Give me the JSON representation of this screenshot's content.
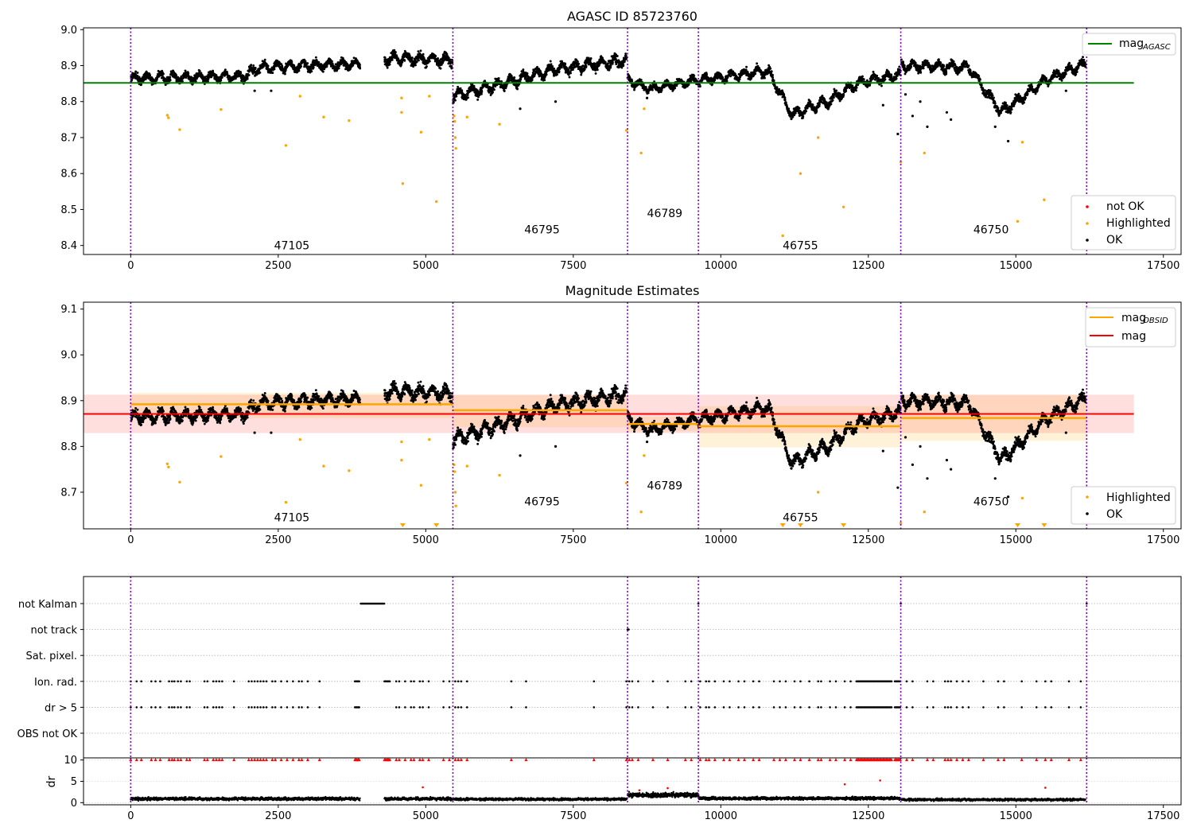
{
  "chart_data": [
    {
      "type": "scatter",
      "title": "AGASC ID 85723760",
      "xlim": [
        -800,
        17800
      ],
      "ylim": [
        8.375,
        9.005
      ],
      "xticks": [
        0,
        2500,
        5000,
        7500,
        10000,
        12500,
        15000,
        17500
      ],
      "yticks": [
        8.4,
        8.5,
        8.6,
        8.7,
        8.8,
        8.9,
        9.0
      ],
      "hlines": [
        {
          "name": "mag_AGASC",
          "y": 8.852,
          "x_range": [
            -800,
            17000
          ],
          "color": "#008000"
        }
      ],
      "vlines": [
        0,
        5460,
        8420,
        9620,
        13050,
        16200
      ],
      "obsid_labels": [
        {
          "text": "47105",
          "x": 2730,
          "y": 8.4
        },
        {
          "text": "46795",
          "x": 6970,
          "y": 8.445
        },
        {
          "text": "46789",
          "x": 9050,
          "y": 8.49
        },
        {
          "text": "46755",
          "x": 11350,
          "y": 8.4
        },
        {
          "text": "46750",
          "x": 14580,
          "y": 8.445
        }
      ],
      "legend_top": {
        "placement": "top-right",
        "entries": [
          {
            "label": "mag",
            "subscript": "AGASC",
            "color": "#008000"
          }
        ]
      },
      "legend_bottom": {
        "placement": "bottom-right",
        "entries": [
          {
            "label": "not OK",
            "color": "#ff0000"
          },
          {
            "label": "Highlighted",
            "color": "#ffa500"
          },
          {
            "label": "OK",
            "color": "#000000"
          }
        ]
      },
      "highlighted_points": [
        [
          620,
          8.762
        ],
        [
          640,
          8.755
        ],
        [
          830,
          8.722
        ],
        [
          1530,
          8.778
        ],
        [
          2630,
          8.678
        ],
        [
          2870,
          8.815
        ],
        [
          3270,
          8.757
        ],
        [
          3700,
          8.747
        ],
        [
          4590,
          8.81
        ],
        [
          4590,
          8.77
        ],
        [
          4610,
          8.572
        ],
        [
          4920,
          8.715
        ],
        [
          5060,
          8.815
        ],
        [
          5180,
          8.522
        ],
        [
          5480,
          8.76
        ],
        [
          5490,
          8.745
        ],
        [
          5500,
          8.7
        ],
        [
          5510,
          8.67
        ],
        [
          5700,
          8.757
        ],
        [
          6250,
          8.737
        ],
        [
          8400,
          8.72
        ],
        [
          8650,
          8.657
        ],
        [
          8700,
          8.78
        ],
        [
          11050,
          8.427
        ],
        [
          11350,
          8.6
        ],
        [
          11650,
          8.7
        ],
        [
          12080,
          8.507
        ],
        [
          13050,
          8.632
        ],
        [
          13450,
          8.657
        ],
        [
          15030,
          8.467
        ],
        [
          15110,
          8.687
        ],
        [
          15480,
          8.527
        ]
      ],
      "ok_outliers": [
        [
          2100,
          8.83
        ],
        [
          2380,
          8.83
        ],
        [
          6600,
          8.78
        ],
        [
          7200,
          8.8
        ],
        [
          8750,
          8.81
        ],
        [
          12750,
          8.79
        ],
        [
          13000,
          8.71
        ],
        [
          13130,
          8.82
        ],
        [
          13250,
          8.76
        ],
        [
          13380,
          8.8
        ],
        [
          13500,
          8.73
        ],
        [
          13830,
          8.77
        ],
        [
          13900,
          8.75
        ],
        [
          14650,
          8.73
        ],
        [
          14870,
          8.69
        ],
        [
          15850,
          8.83
        ]
      ],
      "segments": [
        {
          "x": [
            0,
            3880
          ],
          "trend": [
            [
              0,
              8.865
            ],
            [
              1900,
              8.87
            ],
            [
              2200,
              8.895
            ],
            [
              3880,
              8.905
            ]
          ],
          "spread": 0.03
        },
        {
          "x": [
            4300,
            5450
          ],
          "trend": [
            [
              4300,
              8.92
            ],
            [
              5450,
              8.915
            ]
          ],
          "spread": 0.035
        },
        {
          "x": [
            5460,
            8400
          ],
          "trend": [
            [
              5460,
              8.815
            ],
            [
              6300,
              8.85
            ],
            [
              7200,
              8.89
            ],
            [
              8400,
              8.915
            ]
          ],
          "spread": 0.035
        },
        {
          "x": [
            8420,
            9620
          ],
          "trend": [
            [
              8420,
              8.86
            ],
            [
              8800,
              8.835
            ],
            [
              9620,
              8.86
            ]
          ],
          "spread": 0.025
        },
        {
          "x": [
            9620,
            13040
          ],
          "trend": [
            [
              9620,
              8.86
            ],
            [
              10800,
              8.885
            ],
            [
              11200,
              8.765
            ],
            [
              11800,
              8.8
            ],
            [
              12300,
              8.85
            ],
            [
              13040,
              8.875
            ]
          ],
          "spread": 0.03
        },
        {
          "x": [
            13060,
            16180
          ],
          "trend": [
            [
              13060,
              8.9
            ],
            [
              14200,
              8.895
            ],
            [
              14750,
              8.77
            ],
            [
              15500,
              8.86
            ],
            [
              16180,
              8.905
            ]
          ],
          "spread": 0.03
        }
      ]
    },
    {
      "type": "scatter",
      "title": "Magnitude Estimates",
      "xlim": [
        -800,
        17800
      ],
      "ylim": [
        8.62,
        9.115
      ],
      "xticks": [
        0,
        2500,
        5000,
        7500,
        10000,
        12500,
        15000,
        17500
      ],
      "yticks": [
        8.7,
        8.8,
        8.9,
        9.0,
        9.1
      ],
      "vlines": [
        0,
        5460,
        8420,
        9620,
        13050,
        16200
      ],
      "mag": {
        "y": 8.871,
        "band": [
          8.829,
          8.913
        ],
        "x_range": [
          -800,
          17000
        ],
        "color": "#ff0000"
      },
      "obsid_mags": [
        {
          "x_range": [
            0,
            5460
          ],
          "y": 8.892,
          "band": [
            8.862,
            8.917
          ]
        },
        {
          "x_range": [
            5460,
            8420
          ],
          "y": 8.879,
          "band": [
            8.842,
            8.912
          ]
        },
        {
          "x_range": [
            8420,
            9620
          ],
          "y": 8.849,
          "band": [
            8.833,
            8.865
          ]
        },
        {
          "x_range": [
            9620,
            13050
          ],
          "y": 8.844,
          "band": [
            8.798,
            8.888
          ]
        },
        {
          "x_range": [
            13050,
            16200
          ],
          "y": 8.862,
          "band": [
            8.812,
            8.912
          ]
        }
      ],
      "obsid_labels": [
        {
          "text": "47105",
          "x": 2730,
          "y": 8.645
        },
        {
          "text": "46795",
          "x": 6970,
          "y": 8.68
        },
        {
          "text": "46789",
          "x": 9050,
          "y": 8.715
        },
        {
          "text": "46755",
          "x": 11350,
          "y": 8.645
        },
        {
          "text": "46750",
          "x": 14580,
          "y": 8.68
        }
      ],
      "offscale_markers_x": [
        4610,
        5180,
        11050,
        11350,
        12080,
        15030,
        15480
      ],
      "legend_top": {
        "placement": "top-right",
        "entries": [
          {
            "label": "mag",
            "subscript": "OBSID",
            "color": "#ffa500"
          },
          {
            "label": "mag",
            "subscript": "",
            "color": "#ff0000"
          }
        ]
      },
      "legend_bottom": {
        "placement": "bottom-right",
        "entries": [
          {
            "label": "Highlighted",
            "color": "#ffa500"
          },
          {
            "label": "OK",
            "color": "#000000"
          }
        ]
      }
    },
    {
      "type": "scatter",
      "title": "",
      "xlim": [
        -800,
        17800
      ],
      "xticks": [
        0,
        2500,
        5000,
        7500,
        10000,
        12500,
        15000,
        17500
      ],
      "vlines": [
        0,
        5460,
        8420,
        9620,
        13050,
        16200
      ],
      "flag_rows": [
        "not Kalman",
        "not track",
        "Sat. pixel.",
        "Ion. rad.",
        "dr > 5",
        "OBS not OK"
      ],
      "flag_events": {
        "not Kalman": {
          "ranges": [
            [
              3900,
              4300
            ]
          ],
          "points": [
            9620,
            13050,
            16200
          ]
        },
        "not track": {
          "ranges": [
            [
              8420,
              8440
            ]
          ],
          "points": []
        },
        "Sat. pixel.": {
          "ranges": [],
          "points": []
        },
        "Ion. rad.": {
          "ranges": [
            [
              3800,
              3880
            ],
            [
              4300,
              4400
            ],
            [
              12300,
              12900
            ],
            [
              12950,
              13050
            ]
          ],
          "points": [
            0,
            100,
            180,
            350,
            420,
            500,
            650,
            700,
            740,
            800,
            850,
            950,
            1000,
            1250,
            1300,
            1400,
            1450,
            1500,
            1550,
            1750,
            2000,
            2050,
            2100,
            2150,
            2200,
            2250,
            2300,
            2400,
            2450,
            2550,
            2650,
            2750,
            2850,
            2900,
            3000,
            3200,
            4500,
            4550,
            4650,
            4750,
            4800,
            4900,
            4950,
            5050,
            5300,
            5400,
            5500,
            5550,
            5600,
            5700,
            6450,
            6700,
            7850,
            8400,
            8450,
            8500,
            8600,
            8850,
            9100,
            9400,
            9500,
            9650,
            9750,
            9800,
            9900,
            10050,
            10150,
            10300,
            10400,
            10550,
            10650,
            10900,
            11000,
            11100,
            11250,
            11350,
            11500,
            11650,
            11700,
            11850,
            11950,
            12100,
            12200,
            13150,
            13250,
            13500,
            13600,
            13800,
            13850,
            13900,
            14000,
            14100,
            14200,
            14450,
            14700,
            14800,
            15100,
            15350,
            15500,
            15600,
            15900,
            16100
          ]
        },
        "dr > 5": {
          "ranges": [
            [
              3800,
              3880
            ],
            [
              12300,
              12900
            ],
            [
              12950,
              13050
            ]
          ],
          "points": [
            0,
            100,
            180,
            350,
            420,
            500,
            650,
            700,
            740,
            800,
            850,
            950,
            1000,
            1250,
            1300,
            1400,
            1450,
            1500,
            1550,
            1750,
            2000,
            2050,
            2100,
            2150,
            2200,
            2250,
            2300,
            2400,
            2450,
            2550,
            2650,
            2750,
            2850,
            2900,
            3000,
            3200,
            4500,
            4550,
            4650,
            4750,
            4800,
            4900,
            4950,
            5050,
            5300,
            5400,
            5500,
            5550,
            5600,
            5700,
            6450,
            6700,
            7850,
            8400,
            8450,
            8500,
            8600,
            8850,
            9100,
            9400,
            9500,
            9650,
            9750,
            9800,
            9900,
            10050,
            10150,
            10300,
            10400,
            10550,
            10650,
            10900,
            11000,
            11100,
            11250,
            11350,
            11500,
            11650,
            11700,
            11850,
            11950,
            12100,
            12200,
            13150,
            13250,
            13500,
            13600,
            13800,
            13850,
            13900,
            14000,
            14100,
            14200,
            14450,
            14700,
            14800,
            15100,
            15350,
            15500,
            15600,
            15900,
            16100
          ]
        },
        "OBS not OK": {
          "ranges": [],
          "points": []
        }
      },
      "dr_panel": {
        "ylabel": "dr",
        "ylim": [
          -0.5,
          10.5
        ],
        "yticks": [
          0,
          5,
          10
        ],
        "clipped_value": 10,
        "dr_red_points": [
          [
            4950,
            3.6
          ],
          [
            12100,
            4.3
          ],
          [
            12700,
            5.2
          ],
          [
            15500,
            3.5
          ],
          [
            9100,
            3.4
          ],
          [
            8620,
            2.9
          ]
        ],
        "dr_segments": [
          {
            "x": [
              0,
              3880
            ],
            "level": 0.9,
            "spread": 0.5
          },
          {
            "x": [
              4300,
              5450
            ],
            "level": 0.9,
            "spread": 0.5
          },
          {
            "x": [
              5460,
              8400
            ],
            "level": 0.8,
            "spread": 0.4
          },
          {
            "x": [
              8420,
              9620
            ],
            "level": 1.8,
            "spread": 0.8
          },
          {
            "x": [
              9620,
              13040
            ],
            "level": 1.0,
            "spread": 0.5
          },
          {
            "x": [
              13060,
              16180
            ],
            "level": 0.7,
            "spread": 0.4
          }
        ]
      }
    }
  ]
}
